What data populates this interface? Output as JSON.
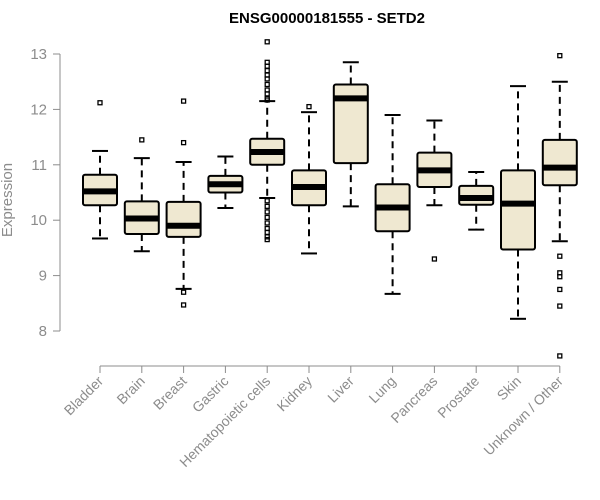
{
  "chart_data": {
    "type": "boxplot",
    "title": "ENSG00000181555 - SETD2",
    "xlabel": "",
    "ylabel": "Expression",
    "ylim": [
      7.5,
      13.2
    ],
    "yticks": [
      8,
      9,
      10,
      11,
      12,
      13
    ],
    "colors": {
      "box_fill": "#efe8d1",
      "stroke": "#000000",
      "axis": "#8c8c8c"
    },
    "categories": [
      "Bladder",
      "Brain",
      "Breast",
      "Gastric",
      "Hematopoietic cells",
      "Kidney",
      "Liver",
      "Lung",
      "Pancreas",
      "Prostate",
      "Skin",
      "Unknown / Other"
    ],
    "boxes": [
      {
        "label": "Bladder",
        "whisker_low": 9.67,
        "q1": 10.27,
        "median": 10.52,
        "q3": 10.82,
        "whisker_high": 11.25,
        "outliers": [
          12.12
        ]
      },
      {
        "label": "Brain",
        "whisker_low": 9.44,
        "q1": 9.75,
        "median": 10.03,
        "q3": 10.34,
        "whisker_high": 11.12,
        "outliers": [
          11.45
        ]
      },
      {
        "label": "Breast",
        "whisker_low": 8.76,
        "q1": 9.7,
        "median": 9.9,
        "q3": 10.33,
        "whisker_high": 11.05,
        "outliers": [
          8.7,
          8.47,
          11.4,
          12.15
        ]
      },
      {
        "label": "Gastric",
        "whisker_low": 10.22,
        "q1": 10.5,
        "median": 10.65,
        "q3": 10.8,
        "whisker_high": 11.15,
        "outliers": []
      },
      {
        "label": "Hematopoietic cells",
        "whisker_low": 10.4,
        "q1": 11.0,
        "median": 11.23,
        "q3": 11.47,
        "whisker_high": 12.15,
        "outliers": [
          13.22,
          12.85,
          12.78,
          12.7,
          12.62,
          12.55,
          12.45,
          12.35,
          12.28,
          12.2,
          12.17,
          10.35,
          10.25,
          10.15,
          10.05,
          9.95,
          9.85,
          9.78,
          9.7,
          9.65
        ]
      },
      {
        "label": "Kidney",
        "whisker_low": 9.4,
        "q1": 10.27,
        "median": 10.6,
        "q3": 10.9,
        "whisker_high": 11.95,
        "outliers": [
          12.05
        ]
      },
      {
        "label": "Liver",
        "whisker_low": 10.25,
        "q1": 11.03,
        "median": 12.2,
        "q3": 12.45,
        "whisker_high": 12.85,
        "outliers": []
      },
      {
        "label": "Lung",
        "whisker_low": 8.67,
        "q1": 9.8,
        "median": 10.23,
        "q3": 10.65,
        "whisker_high": 11.9,
        "outliers": []
      },
      {
        "label": "Pancreas",
        "whisker_low": 10.27,
        "q1": 10.6,
        "median": 10.9,
        "q3": 11.22,
        "whisker_high": 11.8,
        "outliers": [
          9.3
        ]
      },
      {
        "label": "Prostate",
        "whisker_low": 9.83,
        "q1": 10.28,
        "median": 10.4,
        "q3": 10.62,
        "whisker_high": 10.87,
        "outliers": []
      },
      {
        "label": "Skin",
        "whisker_low": 8.22,
        "q1": 9.47,
        "median": 10.3,
        "q3": 10.9,
        "whisker_high": 12.42,
        "outliers": []
      },
      {
        "label": "Unknown / Other",
        "whisker_low": 9.62,
        "q1": 10.63,
        "median": 10.95,
        "q3": 11.45,
        "whisker_high": 12.5,
        "outliers": [
          12.97,
          9.35,
          9.05,
          8.98,
          8.75,
          8.45,
          7.55
        ]
      }
    ]
  }
}
